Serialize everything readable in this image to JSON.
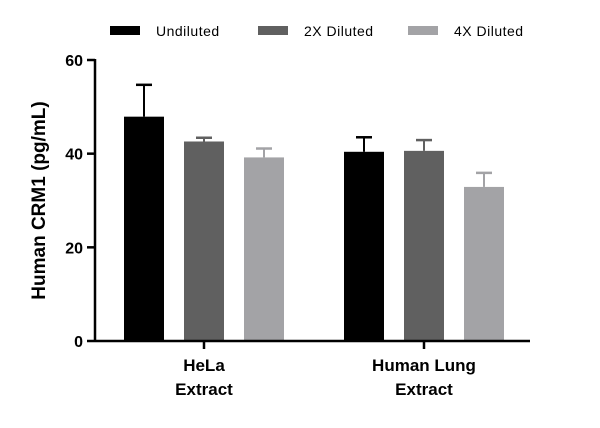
{
  "chart_data": {
    "type": "bar",
    "title": "",
    "xlabel": "",
    "ylabel": "Human CRM1 (pg/mL)",
    "ylim": [
      0,
      60
    ],
    "yticks": [
      0,
      20,
      40,
      60
    ],
    "grid": false,
    "legend_position": "top",
    "categories": [
      [
        "HeLa",
        "Extract"
      ],
      [
        "Human Lung",
        "Extract"
      ]
    ],
    "series": [
      {
        "name": "Undiluted",
        "color": "#000000",
        "values": [
          47.9,
          40.4
        ],
        "errors": [
          6.8,
          3.1
        ]
      },
      {
        "name": "2X Diluted",
        "color": "#606060",
        "values": [
          42.6,
          40.6
        ],
        "errors": [
          0.8,
          2.3
        ]
      },
      {
        "name": "4X Diluted",
        "color": "#a3a3a6",
        "values": [
          39.2,
          32.9
        ],
        "errors": [
          1.9,
          3.0
        ]
      }
    ]
  }
}
